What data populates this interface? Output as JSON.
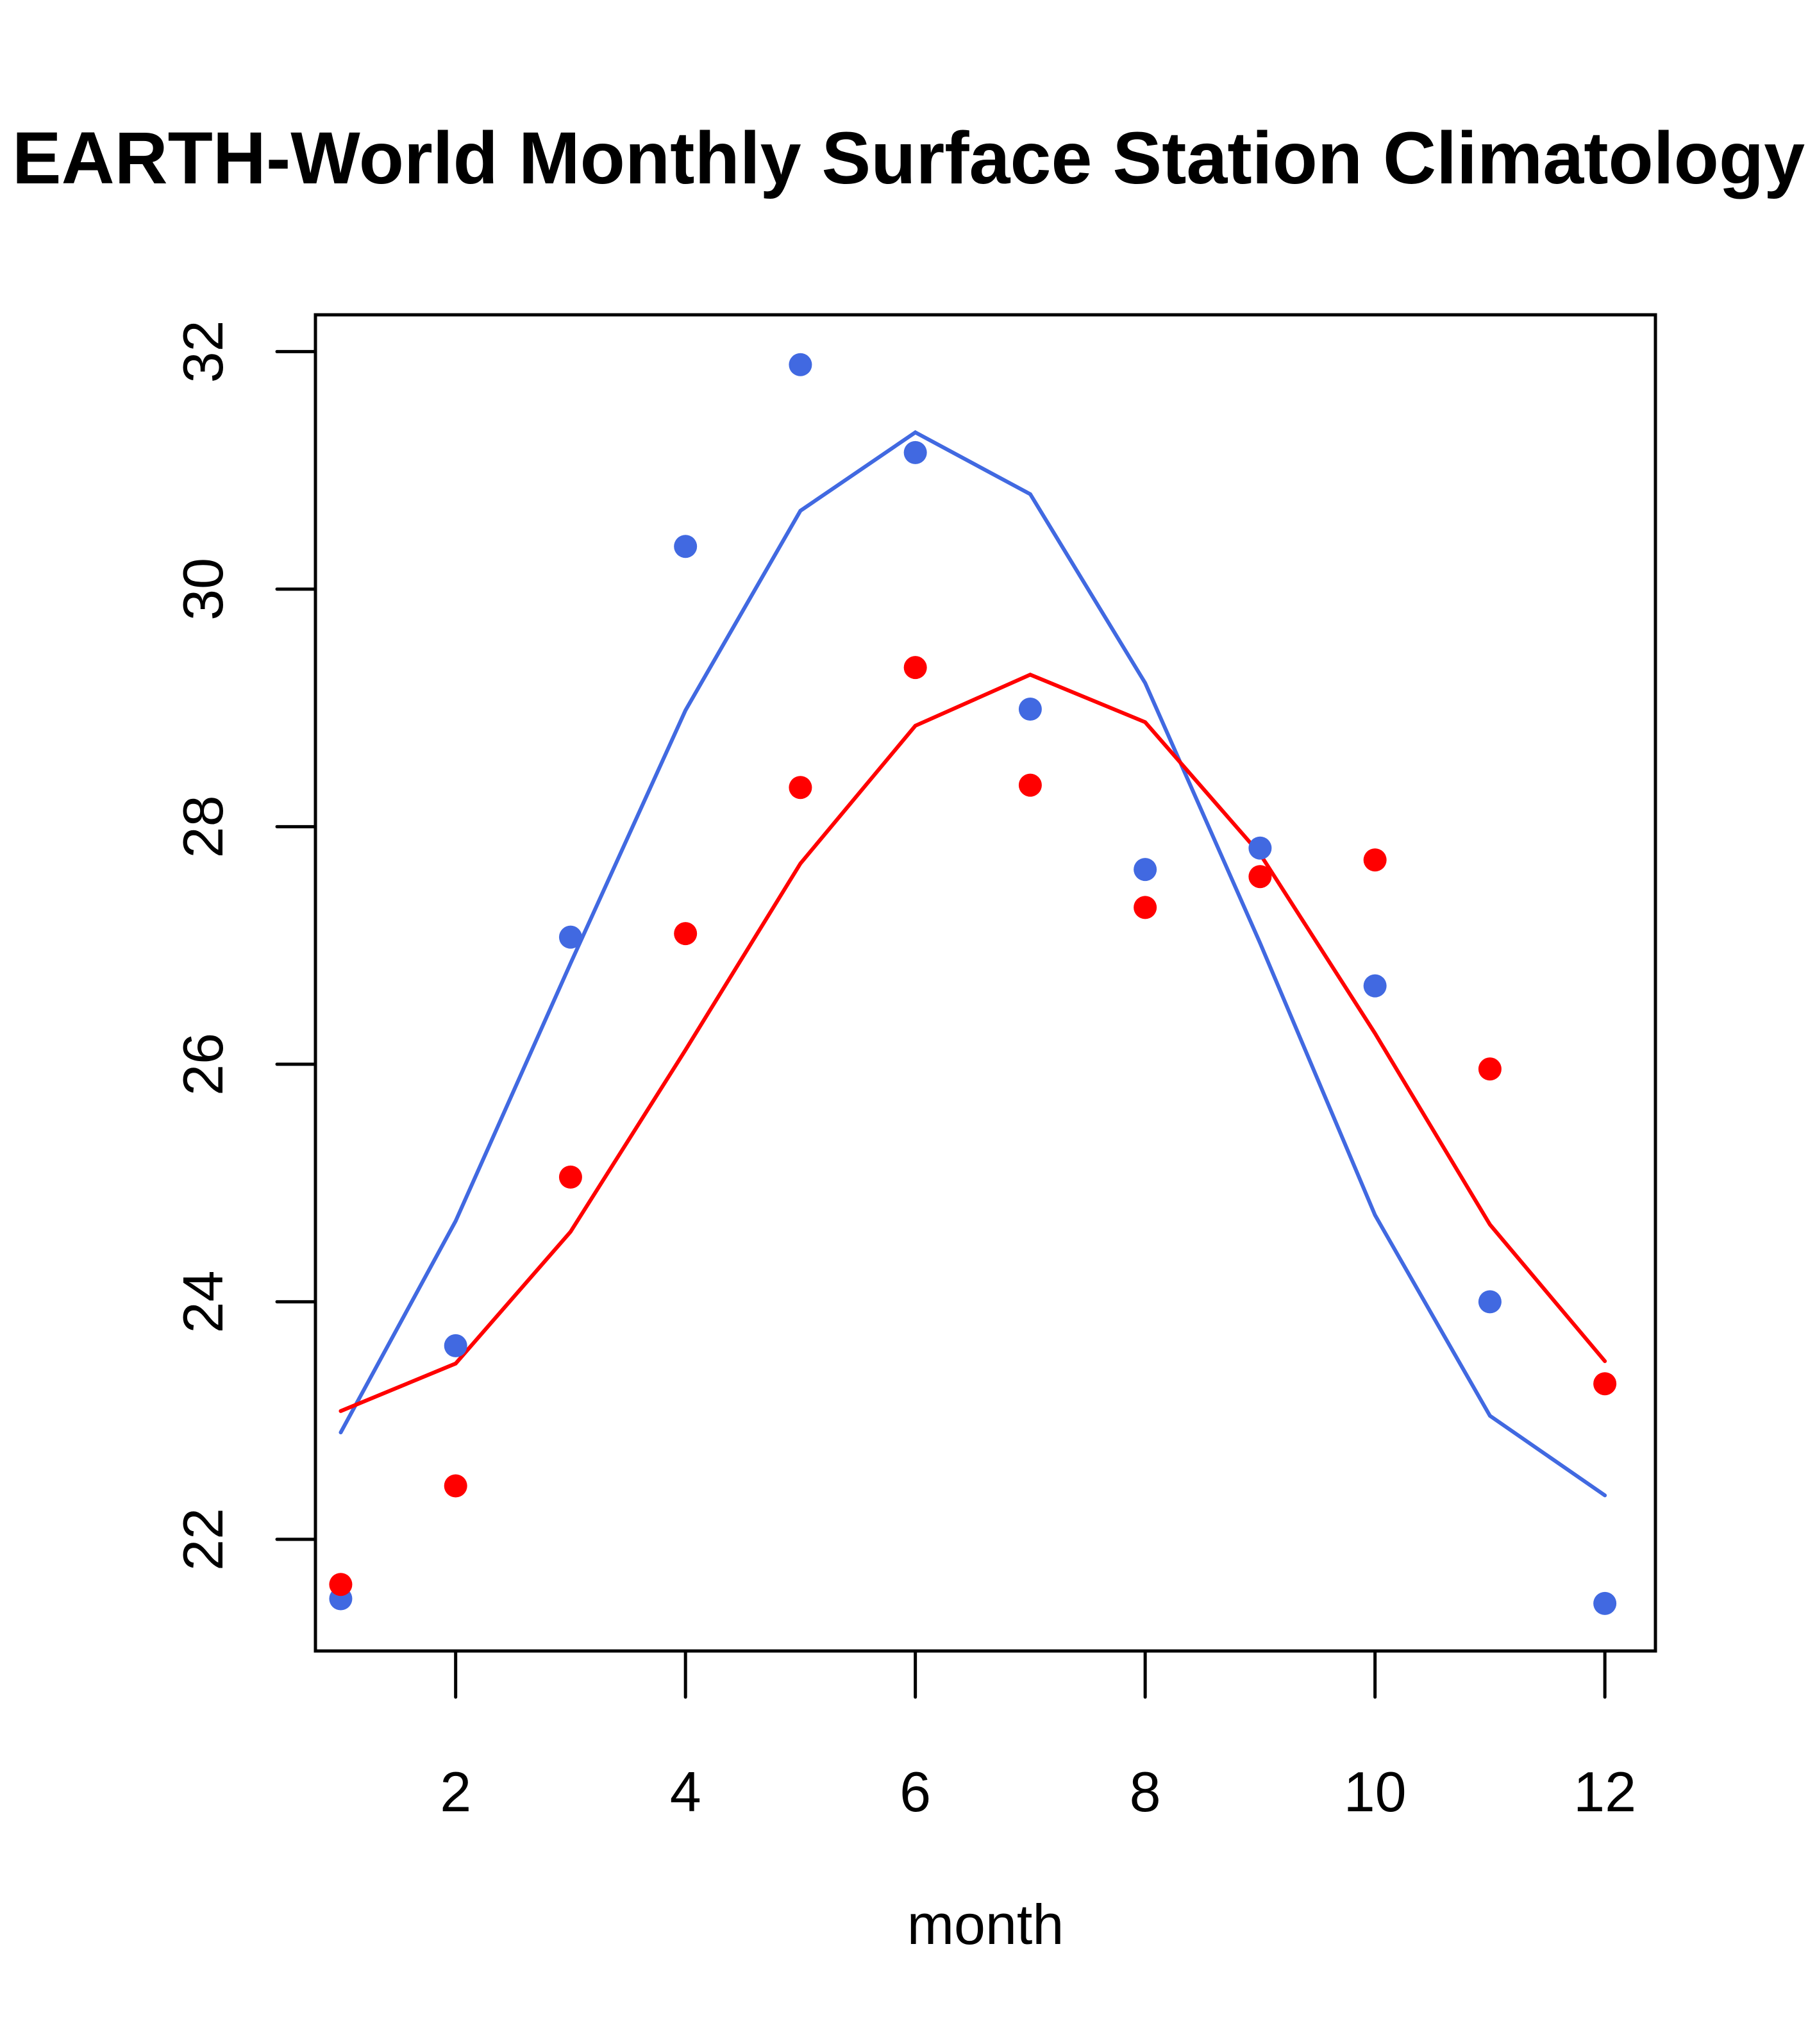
{
  "chart_data": {
    "type": "line",
    "title": "EARTH-World Monthly Surface Station Climatology",
    "xlabel": "month",
    "ylabel": "",
    "xlim": [
      0.78,
      12.44
    ],
    "ylim": [
      21.06,
      32.31
    ],
    "x_ticks": [
      2,
      4,
      6,
      8,
      10,
      12
    ],
    "y_ticks": [
      22,
      24,
      26,
      28,
      30,
      32
    ],
    "x_tick_labels": [
      "2",
      "4",
      "6",
      "8",
      "10",
      "12"
    ],
    "y_tick_labels": [
      "22",
      "24",
      "26",
      "28",
      "30",
      "32"
    ],
    "grid": false,
    "legend": "none",
    "x": [
      1,
      2,
      3,
      4,
      5,
      6,
      7,
      8,
      9,
      10,
      11,
      12
    ],
    "series": [
      {
        "name": "blue-points",
        "kind": "points",
        "color": "#4169E1",
        "values": [
          21.5,
          23.63,
          27.07,
          30.36,
          31.89,
          31.15,
          28.99,
          27.64,
          27.82,
          26.66,
          24.0,
          21.46
        ]
      },
      {
        "name": "red-points",
        "kind": "points",
        "color": "#FF0000",
        "values": [
          21.62,
          22.45,
          25.05,
          27.1,
          28.33,
          29.34,
          28.35,
          27.32,
          27.58,
          27.72,
          25.96,
          23.31
        ]
      },
      {
        "name": "blue-line",
        "kind": "line",
        "color": "#4169E1",
        "values": [
          22.9,
          24.68,
          26.85,
          28.98,
          30.66,
          31.32,
          30.8,
          29.21,
          27.02,
          24.73,
          23.04,
          22.37
        ]
      },
      {
        "name": "red-line",
        "kind": "line",
        "color": "#FF0000",
        "values": [
          23.08,
          23.48,
          24.59,
          26.12,
          27.69,
          28.85,
          29.28,
          28.88,
          27.77,
          26.26,
          24.65,
          23.5
        ]
      }
    ]
  }
}
